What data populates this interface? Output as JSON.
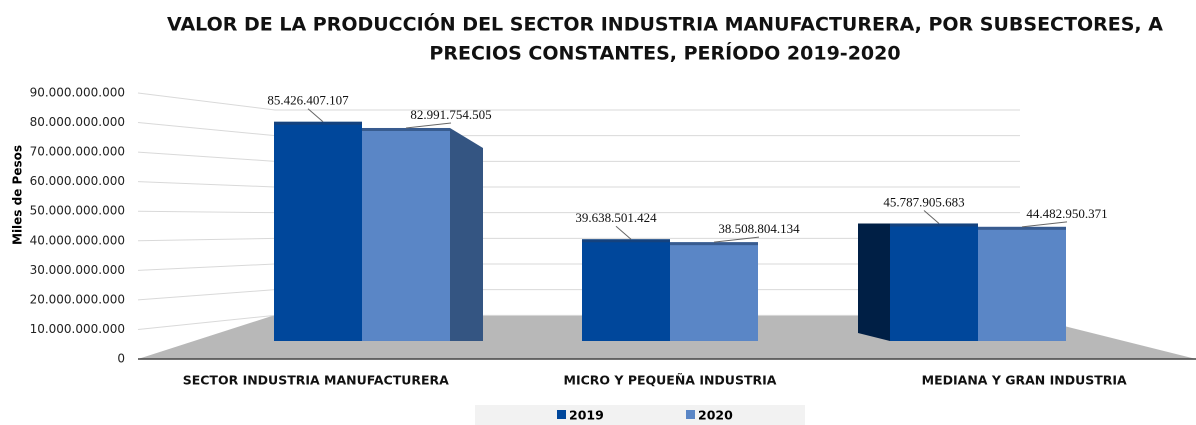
{
  "chart_data": {
    "type": "bar3d",
    "title": [
      "VALOR DE LA PRODUCCIÓN DEL SECTOR INDUSTRIA MANUFACTURERA, POR SUBSECTORES,  A",
      "PRECIOS CONSTANTES, PERÍODO 2019-2020"
    ],
    "y_label": "Miles de Pesos",
    "categories": [
      "SECTOR INDUSTRIA MANUFACTURERA",
      "MICRO Y PEQUEÑA INDUSTRIA",
      "MEDIANA Y GRAN INDUSTRIA"
    ],
    "series": [
      {
        "name": "2019",
        "color": "#00479b",
        "values": [
          85426407107,
          39638501424,
          45787905683
        ],
        "value_labels": [
          "85.426.407.107",
          "39.638.501.424",
          "45.787.905.683"
        ]
      },
      {
        "name": "2020",
        "color": "#5a86c6",
        "values": [
          82991754505,
          38508804134,
          44482950371
        ],
        "value_labels": [
          "82.991.754.505",
          "38.508.804.134",
          "44.482.950.371"
        ]
      }
    ],
    "ylim": [
      0,
      90000000000
    ],
    "yticks": [
      0,
      {
        "value": 10000000000,
        "label": "10.000.000.000"
      },
      {
        "value": 20000000000,
        "label": "20.000.000.000"
      },
      {
        "value": 30000000000,
        "label": "30.000.000.000"
      },
      {
        "value": 40000000000,
        "label": "40.000.000.000"
      },
      {
        "value": 50000000000,
        "label": "50.000.000.000"
      },
      {
        "value": 60000000000,
        "label": "60.000.000.000"
      },
      {
        "value": 70000000000,
        "label": "70.000.000.000"
      },
      {
        "value": 80000000000,
        "label": "80.000.000.000"
      },
      {
        "value": 90000000000,
        "label": "90.000.000.000"
      }
    ],
    "grid": true,
    "legend": "bottom"
  }
}
